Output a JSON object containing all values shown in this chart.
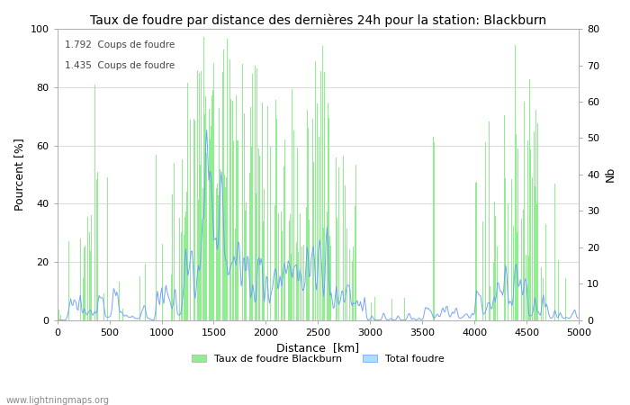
{
  "title": "Taux de foudre par distance des dernières 24h pour la station: Blackburn",
  "xlabel": "Distance  [km]",
  "ylabel_left": "Pourcent [%]",
  "ylabel_right": "Nb",
  "annotation_line1": "1.792  Coups de foudre",
  "annotation_line2": "1.435  Coups de foudre",
  "legend_label1": "Taux de foudre Blackburn",
  "legend_label2": "Total foudre",
  "watermark": "www.lightningmaps.org",
  "xlim": [
    0,
    5000
  ],
  "ylim_left": [
    0,
    100
  ],
  "ylim_right": [
    0,
    80
  ],
  "xticks": [
    0,
    500,
    1000,
    1500,
    2000,
    2500,
    3000,
    3500,
    4000,
    4500,
    5000
  ],
  "yticks_left": [
    0,
    20,
    40,
    60,
    80,
    100
  ],
  "yticks_right": [
    0,
    10,
    20,
    30,
    40,
    50,
    60,
    70,
    80
  ],
  "bar_color": "#90EE90",
  "line_color": "#6699ff",
  "bg_color": "#ffffff",
  "grid_color": "#cccccc",
  "title_fontsize": 10,
  "axis_fontsize": 9,
  "tick_fontsize": 8,
  "figsize": [
    7.0,
    4.5
  ],
  "dpi": 100
}
